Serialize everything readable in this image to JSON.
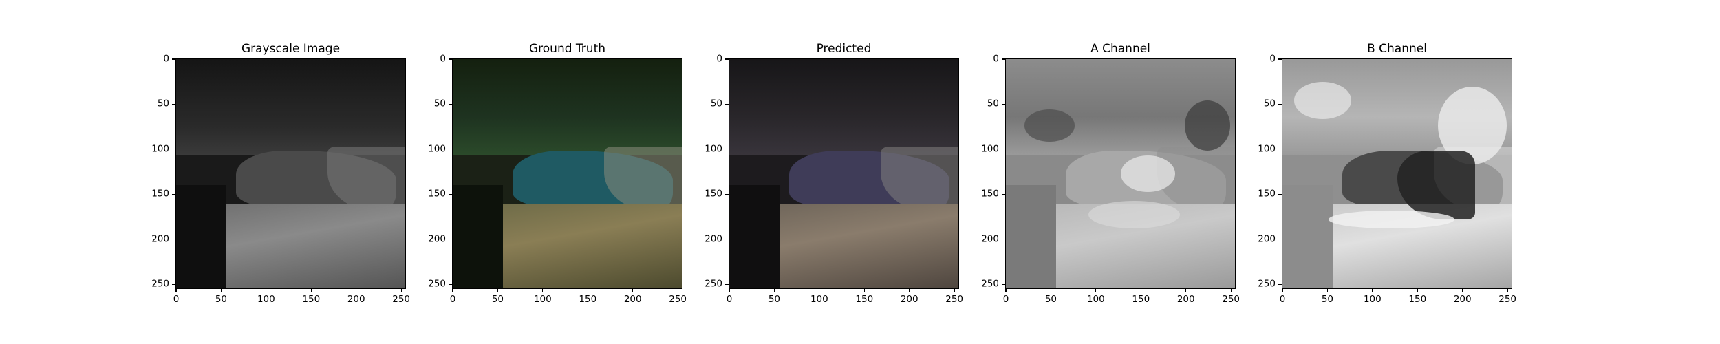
{
  "figure": {
    "panels": [
      {
        "title": "Grayscale Image",
        "kind": "gray"
      },
      {
        "title": "Ground Truth",
        "kind": "truth"
      },
      {
        "title": "Predicted",
        "kind": "pred"
      },
      {
        "title": "A Channel",
        "kind": "achan"
      },
      {
        "title": "B Channel",
        "kind": "bchan"
      }
    ],
    "x_ticks": [
      "0",
      "50",
      "100",
      "150",
      "200",
      "250"
    ],
    "y_ticks": [
      "0",
      "50",
      "100",
      "150",
      "200",
      "250"
    ],
    "x_tick_values": [
      0,
      50,
      100,
      150,
      200,
      250
    ],
    "y_tick_values": [
      0,
      50,
      100,
      150,
      200,
      250
    ],
    "image_extent": [
      256,
      256
    ]
  }
}
